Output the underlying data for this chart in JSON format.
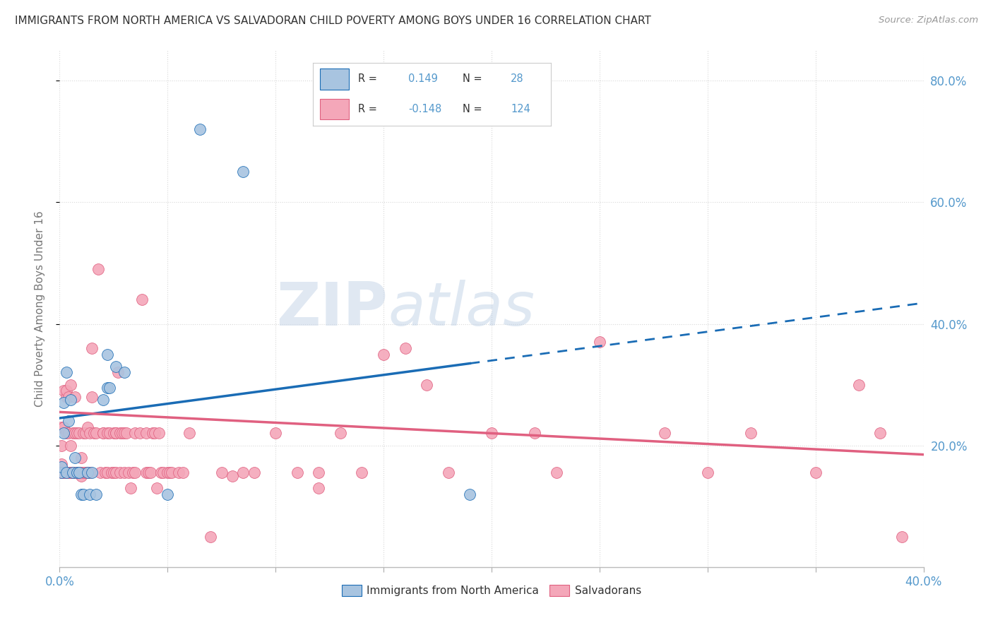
{
  "title": "IMMIGRANTS FROM NORTH AMERICA VS SALVADORAN CHILD POVERTY AMONG BOYS UNDER 16 CORRELATION CHART",
  "source": "Source: ZipAtlas.com",
  "ylabel": "Child Poverty Among Boys Under 16",
  "blue_color": "#a8c4e0",
  "pink_color": "#f4a7b9",
  "blue_line_color": "#1a6cb5",
  "pink_line_color": "#e06080",
  "background_color": "#ffffff",
  "grid_color": "#d8d8d8",
  "title_color": "#333333",
  "axis_label_color": "#5599cc",
  "xlim": [
    0.0,
    0.4
  ],
  "ylim": [
    0.0,
    0.85
  ],
  "blue_points": [
    [
      0.001,
      0.155
    ],
    [
      0.001,
      0.165
    ],
    [
      0.002,
      0.22
    ],
    [
      0.002,
      0.27
    ],
    [
      0.003,
      0.155
    ],
    [
      0.003,
      0.32
    ],
    [
      0.004,
      0.24
    ],
    [
      0.005,
      0.275
    ],
    [
      0.006,
      0.155
    ],
    [
      0.007,
      0.18
    ],
    [
      0.008,
      0.155
    ],
    [
      0.009,
      0.155
    ],
    [
      0.01,
      0.12
    ],
    [
      0.011,
      0.12
    ],
    [
      0.013,
      0.155
    ],
    [
      0.014,
      0.12
    ],
    [
      0.015,
      0.155
    ],
    [
      0.017,
      0.12
    ],
    [
      0.02,
      0.275
    ],
    [
      0.022,
      0.35
    ],
    [
      0.022,
      0.295
    ],
    [
      0.023,
      0.295
    ],
    [
      0.026,
      0.33
    ],
    [
      0.03,
      0.32
    ],
    [
      0.05,
      0.12
    ],
    [
      0.065,
      0.72
    ],
    [
      0.085,
      0.65
    ],
    [
      0.19,
      0.12
    ]
  ],
  "pink_points": [
    [
      0.001,
      0.17
    ],
    [
      0.001,
      0.2
    ],
    [
      0.001,
      0.23
    ],
    [
      0.001,
      0.155
    ],
    [
      0.001,
      0.155
    ],
    [
      0.001,
      0.155
    ],
    [
      0.002,
      0.155
    ],
    [
      0.002,
      0.155
    ],
    [
      0.002,
      0.155
    ],
    [
      0.002,
      0.29
    ],
    [
      0.002,
      0.23
    ],
    [
      0.003,
      0.155
    ],
    [
      0.003,
      0.28
    ],
    [
      0.003,
      0.22
    ],
    [
      0.003,
      0.29
    ],
    [
      0.003,
      0.155
    ],
    [
      0.004,
      0.155
    ],
    [
      0.004,
      0.155
    ],
    [
      0.004,
      0.22
    ],
    [
      0.004,
      0.28
    ],
    [
      0.005,
      0.155
    ],
    [
      0.005,
      0.155
    ],
    [
      0.005,
      0.3
    ],
    [
      0.005,
      0.2
    ],
    [
      0.005,
      0.155
    ],
    [
      0.005,
      0.155
    ],
    [
      0.006,
      0.155
    ],
    [
      0.006,
      0.155
    ],
    [
      0.006,
      0.155
    ],
    [
      0.006,
      0.22
    ],
    [
      0.007,
      0.155
    ],
    [
      0.007,
      0.28
    ],
    [
      0.007,
      0.22
    ],
    [
      0.008,
      0.155
    ],
    [
      0.008,
      0.155
    ],
    [
      0.008,
      0.22
    ],
    [
      0.009,
      0.155
    ],
    [
      0.009,
      0.155
    ],
    [
      0.009,
      0.22
    ],
    [
      0.01,
      0.155
    ],
    [
      0.01,
      0.18
    ],
    [
      0.01,
      0.15
    ],
    [
      0.011,
      0.22
    ],
    [
      0.011,
      0.155
    ],
    [
      0.012,
      0.22
    ],
    [
      0.012,
      0.155
    ],
    [
      0.013,
      0.23
    ],
    [
      0.013,
      0.155
    ],
    [
      0.014,
      0.155
    ],
    [
      0.014,
      0.22
    ],
    [
      0.015,
      0.36
    ],
    [
      0.015,
      0.28
    ],
    [
      0.016,
      0.22
    ],
    [
      0.017,
      0.22
    ],
    [
      0.018,
      0.49
    ],
    [
      0.019,
      0.155
    ],
    [
      0.02,
      0.22
    ],
    [
      0.02,
      0.22
    ],
    [
      0.021,
      0.155
    ],
    [
      0.022,
      0.155
    ],
    [
      0.022,
      0.22
    ],
    [
      0.023,
      0.22
    ],
    [
      0.024,
      0.155
    ],
    [
      0.025,
      0.22
    ],
    [
      0.025,
      0.155
    ],
    [
      0.026,
      0.155
    ],
    [
      0.026,
      0.22
    ],
    [
      0.026,
      0.22
    ],
    [
      0.027,
      0.32
    ],
    [
      0.028,
      0.155
    ],
    [
      0.028,
      0.22
    ],
    [
      0.029,
      0.22
    ],
    [
      0.03,
      0.22
    ],
    [
      0.03,
      0.155
    ],
    [
      0.031,
      0.22
    ],
    [
      0.032,
      0.155
    ],
    [
      0.033,
      0.13
    ],
    [
      0.034,
      0.155
    ],
    [
      0.035,
      0.22
    ],
    [
      0.035,
      0.155
    ],
    [
      0.037,
      0.22
    ],
    [
      0.038,
      0.44
    ],
    [
      0.04,
      0.22
    ],
    [
      0.04,
      0.155
    ],
    [
      0.041,
      0.155
    ],
    [
      0.042,
      0.155
    ],
    [
      0.043,
      0.22
    ],
    [
      0.044,
      0.22
    ],
    [
      0.045,
      0.13
    ],
    [
      0.046,
      0.22
    ],
    [
      0.047,
      0.155
    ],
    [
      0.048,
      0.155
    ],
    [
      0.05,
      0.155
    ],
    [
      0.051,
      0.155
    ],
    [
      0.052,
      0.155
    ],
    [
      0.055,
      0.155
    ],
    [
      0.057,
      0.155
    ],
    [
      0.06,
      0.22
    ],
    [
      0.07,
      0.05
    ],
    [
      0.075,
      0.155
    ],
    [
      0.08,
      0.15
    ],
    [
      0.085,
      0.155
    ],
    [
      0.09,
      0.155
    ],
    [
      0.1,
      0.22
    ],
    [
      0.11,
      0.155
    ],
    [
      0.12,
      0.13
    ],
    [
      0.12,
      0.155
    ],
    [
      0.13,
      0.22
    ],
    [
      0.14,
      0.155
    ],
    [
      0.15,
      0.35
    ],
    [
      0.16,
      0.36
    ],
    [
      0.17,
      0.3
    ],
    [
      0.18,
      0.155
    ],
    [
      0.2,
      0.22
    ],
    [
      0.22,
      0.22
    ],
    [
      0.23,
      0.155
    ],
    [
      0.25,
      0.37
    ],
    [
      0.28,
      0.22
    ],
    [
      0.3,
      0.155
    ],
    [
      0.32,
      0.22
    ],
    [
      0.35,
      0.155
    ],
    [
      0.37,
      0.3
    ],
    [
      0.38,
      0.22
    ],
    [
      0.39,
      0.05
    ]
  ],
  "blue_line_x0": 0.0,
  "blue_line_y0": 0.245,
  "blue_line_x1": 0.19,
  "blue_line_y1": 0.335,
  "pink_line_x0": 0.0,
  "pink_line_y0": 0.255,
  "pink_line_x1": 0.4,
  "pink_line_y1": 0.185
}
